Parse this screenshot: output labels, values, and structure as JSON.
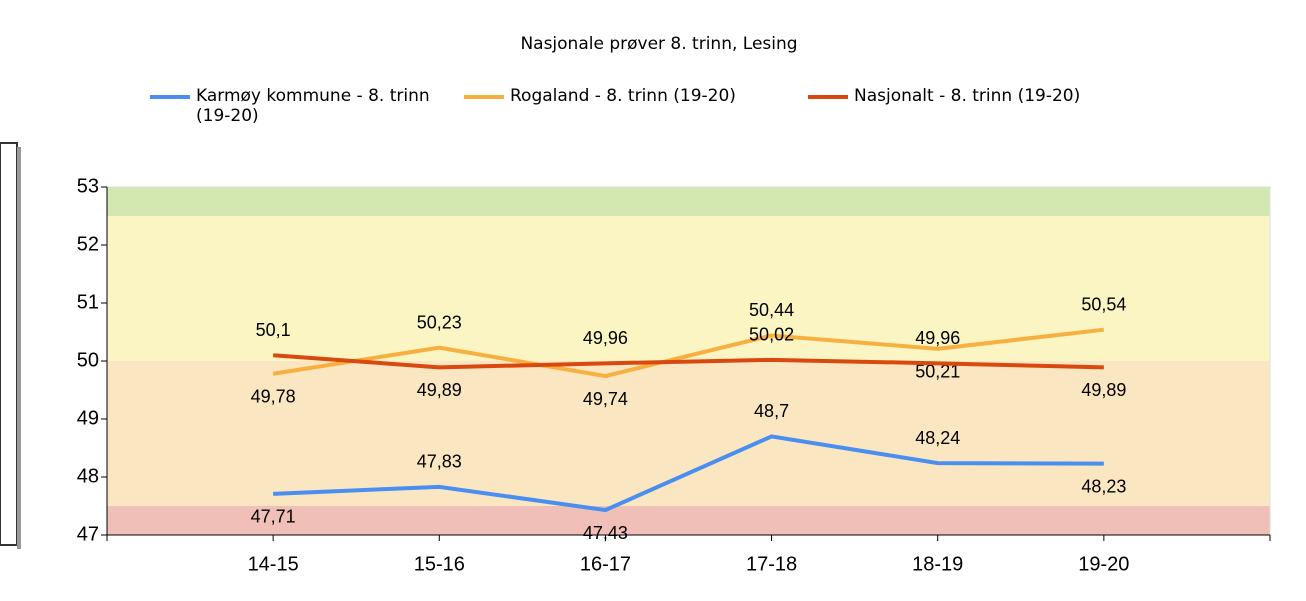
{
  "chart_data": {
    "type": "line",
    "title": "Nasjonale prøver 8. trinn, Lesing",
    "categories": [
      "14-15",
      "15-16",
      "16-17",
      "17-18",
      "18-19",
      "19-20"
    ],
    "series": [
      {
        "name": "Karmøy kommune - 8. trinn (19-20)",
        "color": "#4a8ff0",
        "values": [
          47.71,
          47.83,
          47.43,
          48.7,
          48.24,
          48.23
        ],
        "value_labels": [
          "47,71",
          "47,83",
          "47,43",
          "48,7",
          "48,24",
          "48,23"
        ]
      },
      {
        "name": "Rogaland - 8. trinn (19-20)",
        "color": "#f7b040",
        "values": [
          49.78,
          50.23,
          49.74,
          50.44,
          50.21,
          50.54
        ],
        "value_labels": [
          "49,78",
          "50,23",
          "49,74",
          "50,44",
          "50,21",
          "50,54"
        ]
      },
      {
        "name": "Nasjonalt - 8. trinn (19-20)",
        "color": "#d9480f",
        "values": [
          50.1,
          49.89,
          49.96,
          50.02,
          49.96,
          49.89
        ],
        "value_labels": [
          "50,1",
          "49,89",
          "49,96",
          "50,02",
          "49,96",
          "49,89"
        ]
      }
    ],
    "ylim": [
      47,
      53
    ],
    "yticks": [
      47,
      48,
      49,
      50,
      51,
      52,
      53
    ],
    "bands": [
      {
        "from": 47,
        "to": 47.5,
        "color": "#f0c0b8"
      },
      {
        "from": 47.5,
        "to": 50,
        "color": "#fbe6c2"
      },
      {
        "from": 50,
        "to": 52.5,
        "color": "#fbf5c4"
      },
      {
        "from": 52.5,
        "to": 53,
        "color": "#d2e8b0"
      }
    ]
  }
}
